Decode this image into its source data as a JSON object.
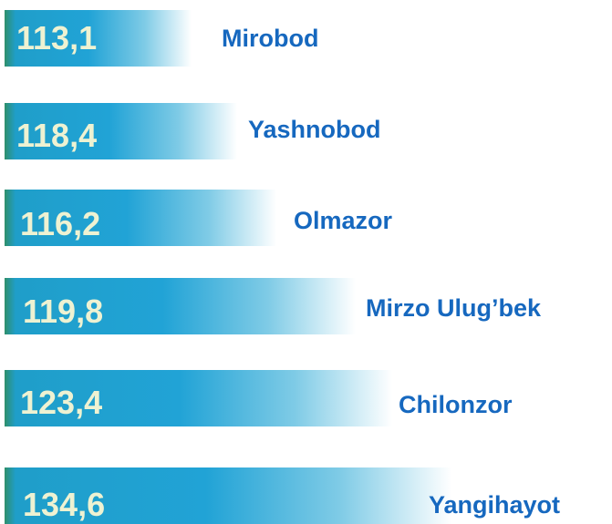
{
  "items": [
    {
      "value": "113,1",
      "name": "Mirobod"
    },
    {
      "value": "118,4",
      "name": "Yashnobod"
    },
    {
      "value": "116,2",
      "name": "Olmazor"
    },
    {
      "value": "119,8",
      "name": "Mirzo Ulug’bek"
    },
    {
      "value": "123,4",
      "name": "Chilonzor"
    },
    {
      "value": "134,6",
      "name": "Yangihayot"
    }
  ]
}
